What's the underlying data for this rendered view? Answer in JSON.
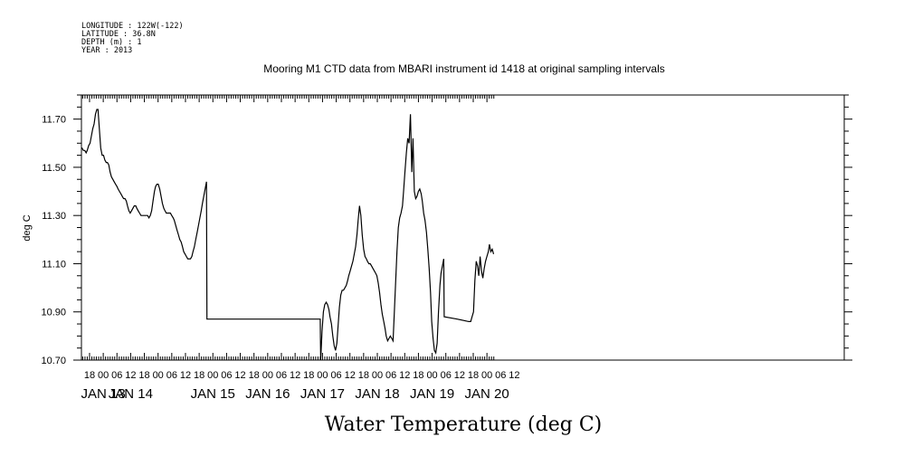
{
  "header": {
    "lines": [
      "LONGITUDE : 122W(-122)",
      "LATITUDE : 36.8N",
      "DEPTH (m) : 1",
      "YEAR : 2013"
    ]
  },
  "chart_data": {
    "type": "line",
    "title": "Mooring M1 CTD data from MBARI instrument id 1418 at original sampling intervals",
    "ylabel": "deg C",
    "xlabel": "Water Temperature (deg C)",
    "ylim": [
      10.7,
      11.8
    ],
    "ytick_labels": [
      "10.70",
      "10.90",
      "11.10",
      "11.30",
      "11.50",
      "11.70"
    ],
    "x_unit": "hours",
    "xlim": [
      -9,
      168
    ],
    "xtick_labels": [
      "18",
      "00",
      "06",
      "12",
      "18",
      "00",
      "06",
      "12",
      "18",
      "00",
      "06",
      "12",
      "18",
      "00",
      "06",
      "12",
      "18",
      "00",
      "06",
      "12",
      "18",
      "00",
      "06",
      "12",
      "18",
      "00",
      "06",
      "12",
      "18",
      "00",
      "06",
      "12"
    ],
    "date_labels": [
      {
        "label": "JAN 13",
        "at": 0
      },
      {
        "label": "JAN 14",
        "at": 12
      },
      {
        "label": "JAN 15",
        "at": 48
      },
      {
        "label": "JAN 16",
        "at": 72
      },
      {
        "label": "JAN 17",
        "at": 96
      },
      {
        "label": "JAN 18",
        "at": 120
      },
      {
        "label": "JAN 19",
        "at": 144
      },
      {
        "label": "JAN 20",
        "at": 168
      }
    ],
    "series": [
      {
        "color": "#000000",
        "points": [
          [
            -9.9,
            11.58
          ],
          [
            -9.3,
            11.58
          ],
          [
            -8.7,
            11.57
          ],
          [
            -8.1,
            11.57
          ],
          [
            -7.5,
            11.56
          ],
          [
            -7.0,
            11.57
          ],
          [
            -6.4,
            11.59
          ],
          [
            -5.8,
            11.6
          ],
          [
            -5.2,
            11.63
          ],
          [
            -4.6,
            11.66
          ],
          [
            -4.0,
            11.68
          ],
          [
            -3.4,
            11.72
          ],
          [
            -2.8,
            11.74
          ],
          [
            -2.3,
            11.74
          ],
          [
            -1.7,
            11.66
          ],
          [
            -1.1,
            11.58
          ],
          [
            -0.5,
            11.55
          ],
          [
            0.1,
            11.55
          ],
          [
            0.7,
            11.53
          ],
          [
            1.3,
            11.52
          ],
          [
            1.8,
            11.52
          ],
          [
            2.4,
            11.51
          ],
          [
            3.0,
            11.48
          ],
          [
            3.6,
            11.46
          ],
          [
            4.2,
            11.45
          ],
          [
            4.8,
            11.44
          ],
          [
            5.4,
            11.43
          ],
          [
            6.0,
            11.42
          ],
          [
            6.5,
            11.41
          ],
          [
            7.1,
            11.4
          ],
          [
            7.7,
            11.39
          ],
          [
            8.3,
            11.38
          ],
          [
            8.9,
            11.37
          ],
          [
            9.5,
            11.37
          ],
          [
            10.1,
            11.36
          ],
          [
            10.6,
            11.34
          ],
          [
            11.2,
            11.32
          ],
          [
            11.8,
            11.31
          ],
          [
            12.4,
            11.32
          ],
          [
            13.0,
            11.33
          ],
          [
            13.6,
            11.34
          ],
          [
            14.2,
            11.34
          ],
          [
            14.7,
            11.33
          ],
          [
            15.3,
            11.32
          ],
          [
            15.9,
            11.31
          ],
          [
            16.5,
            11.3
          ],
          [
            17.1,
            11.3
          ],
          [
            17.7,
            11.3
          ],
          [
            18.3,
            11.3
          ],
          [
            18.8,
            11.3
          ],
          [
            19.4,
            11.3
          ],
          [
            20.0,
            11.29
          ],
          [
            20.6,
            11.3
          ],
          [
            21.2,
            11.32
          ],
          [
            21.8,
            11.36
          ],
          [
            22.4,
            11.4
          ],
          [
            22.9,
            11.42
          ],
          [
            23.5,
            11.43
          ],
          [
            24.1,
            11.43
          ],
          [
            24.7,
            11.41
          ],
          [
            25.3,
            11.38
          ],
          [
            25.9,
            11.35
          ],
          [
            26.5,
            11.33
          ],
          [
            27.0,
            11.32
          ],
          [
            27.6,
            11.31
          ],
          [
            28.2,
            11.31
          ],
          [
            28.8,
            11.31
          ],
          [
            29.4,
            11.31
          ],
          [
            30.0,
            11.3
          ],
          [
            30.6,
            11.29
          ],
          [
            31.1,
            11.28
          ],
          [
            31.7,
            11.26
          ],
          [
            32.3,
            11.24
          ],
          [
            32.9,
            11.22
          ],
          [
            33.5,
            11.2
          ],
          [
            34.1,
            11.19
          ],
          [
            34.7,
            11.17
          ],
          [
            35.2,
            11.15
          ],
          [
            35.8,
            11.14
          ],
          [
            36.4,
            11.13
          ],
          [
            37.0,
            11.12
          ],
          [
            37.6,
            11.12
          ],
          [
            38.2,
            11.12
          ],
          [
            38.8,
            11.13
          ],
          [
            39.3,
            11.15
          ],
          [
            39.9,
            11.17
          ],
          [
            40.5,
            11.2
          ],
          [
            41.1,
            11.23
          ],
          [
            41.7,
            11.26
          ],
          [
            42.3,
            11.29
          ],
          [
            42.9,
            11.32
          ],
          [
            43.4,
            11.35
          ],
          [
            44.0,
            11.38
          ],
          [
            44.6,
            11.41
          ],
          [
            45.2,
            11.44
          ],
          [
            45.4,
            10.87
          ],
          [
            63.0,
            10.87
          ],
          [
            80.0,
            10.87
          ],
          [
            95.0,
            10.87
          ],
          [
            95.2,
            10.7
          ],
          [
            95.8,
            10.82
          ],
          [
            96.4,
            10.9
          ],
          [
            97.0,
            10.93
          ],
          [
            97.6,
            10.94
          ],
          [
            98.2,
            10.93
          ],
          [
            98.8,
            10.91
          ],
          [
            99.3,
            10.88
          ],
          [
            99.9,
            10.85
          ],
          [
            100.5,
            10.8
          ],
          [
            101.1,
            10.76
          ],
          [
            101.7,
            10.74
          ],
          [
            102.3,
            10.77
          ],
          [
            102.9,
            10.85
          ],
          [
            103.4,
            10.92
          ],
          [
            104.0,
            10.97
          ],
          [
            104.6,
            10.99
          ],
          [
            105.2,
            10.99
          ],
          [
            105.8,
            11.0
          ],
          [
            106.4,
            11.01
          ],
          [
            107.0,
            11.03
          ],
          [
            107.5,
            11.05
          ],
          [
            108.1,
            11.07
          ],
          [
            108.7,
            11.09
          ],
          [
            109.3,
            11.11
          ],
          [
            109.9,
            11.14
          ],
          [
            110.5,
            11.17
          ],
          [
            111.1,
            11.22
          ],
          [
            111.6,
            11.28
          ],
          [
            112.2,
            11.34
          ],
          [
            112.8,
            11.3
          ],
          [
            113.4,
            11.22
          ],
          [
            114.0,
            11.16
          ],
          [
            114.6,
            11.13
          ],
          [
            115.2,
            11.12
          ],
          [
            115.7,
            11.11
          ],
          [
            116.3,
            11.1
          ],
          [
            116.9,
            11.1
          ],
          [
            117.5,
            11.09
          ],
          [
            118.1,
            11.08
          ],
          [
            118.7,
            11.07
          ],
          [
            119.3,
            11.06
          ],
          [
            119.8,
            11.05
          ],
          [
            120.4,
            11.02
          ],
          [
            121.0,
            10.98
          ],
          [
            121.6,
            10.93
          ],
          [
            122.2,
            10.89
          ],
          [
            122.8,
            10.86
          ],
          [
            123.4,
            10.83
          ],
          [
            123.9,
            10.8
          ],
          [
            124.5,
            10.78
          ],
          [
            125.1,
            10.79
          ],
          [
            125.7,
            10.8
          ],
          [
            126.3,
            10.79
          ],
          [
            126.9,
            10.78
          ],
          [
            127.4,
            10.89
          ],
          [
            128.0,
            11.02
          ],
          [
            128.6,
            11.15
          ],
          [
            129.2,
            11.25
          ],
          [
            129.8,
            11.29
          ],
          [
            130.4,
            11.31
          ],
          [
            131.0,
            11.34
          ],
          [
            131.5,
            11.4
          ],
          [
            132.1,
            11.48
          ],
          [
            132.7,
            11.56
          ],
          [
            133.3,
            11.62
          ],
          [
            133.9,
            11.6
          ],
          [
            134.5,
            11.72
          ],
          [
            135.1,
            11.48
          ],
          [
            135.6,
            11.62
          ],
          [
            136.2,
            11.4
          ],
          [
            136.8,
            11.37
          ],
          [
            137.4,
            11.38
          ],
          [
            138.0,
            11.4
          ],
          [
            138.6,
            11.41
          ],
          [
            139.2,
            11.39
          ],
          [
            139.7,
            11.36
          ],
          [
            140.3,
            11.31
          ],
          [
            140.9,
            11.28
          ],
          [
            141.5,
            11.23
          ],
          [
            142.1,
            11.16
          ],
          [
            142.7,
            11.08
          ],
          [
            143.3,
            10.98
          ],
          [
            143.8,
            10.86
          ],
          [
            144.4,
            10.79
          ],
          [
            145.0,
            10.74
          ],
          [
            145.6,
            10.73
          ],
          [
            146.2,
            10.77
          ],
          [
            146.8,
            10.9
          ],
          [
            147.4,
            11.01
          ],
          [
            147.9,
            11.06
          ],
          [
            148.5,
            11.09
          ],
          [
            149.1,
            11.12
          ],
          [
            149.3,
            10.88
          ],
          [
            155.0,
            10.87
          ],
          [
            160.0,
            10.86
          ],
          [
            160.9,
            10.86
          ],
          [
            161.5,
            10.88
          ],
          [
            162.1,
            10.9
          ],
          [
            162.7,
            11.03
          ],
          [
            163.3,
            11.11
          ],
          [
            163.9,
            11.09
          ],
          [
            164.4,
            11.05
          ],
          [
            165.0,
            11.13
          ],
          [
            165.6,
            11.07
          ],
          [
            166.2,
            11.04
          ],
          [
            166.8,
            11.08
          ],
          [
            167.4,
            11.11
          ],
          [
            168.0,
            11.13
          ],
          [
            168.6,
            11.15
          ],
          [
            169.1,
            11.18
          ],
          [
            169.7,
            11.15
          ],
          [
            170.3,
            11.16
          ],
          [
            170.9,
            11.14
          ]
        ]
      }
    ]
  }
}
